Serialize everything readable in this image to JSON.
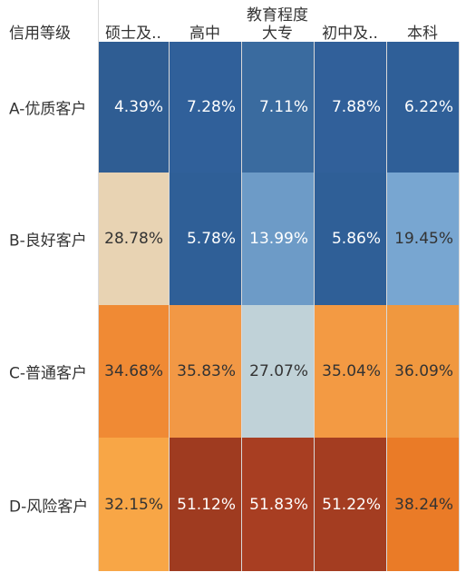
{
  "chart_data": {
    "type": "heatmap",
    "column_group_title": "教育程度",
    "row_header_title": "信用等级",
    "columns": [
      "硕士及..",
      "高中",
      "大专",
      "初中及..",
      "本科"
    ],
    "rows": [
      "A-优质客户",
      "B-良好客户",
      "C-普通客户",
      "D-风险客户"
    ],
    "values": [
      [
        "4.39%",
        "7.28%",
        "7.11%",
        "7.88%",
        "6.22%"
      ],
      [
        "28.78%",
        "5.78%",
        "13.99%",
        "5.86%",
        "19.45%"
      ],
      [
        "34.68%",
        "35.83%",
        "27.07%",
        "35.04%",
        "36.09%"
      ],
      [
        "32.15%",
        "51.12%",
        "51.83%",
        "51.22%",
        "38.24%"
      ]
    ],
    "cell_colors": [
      [
        "#2f5d93",
        "#30609a",
        "#3a6b9f",
        "#31609a",
        "#2f5f98"
      ],
      [
        "#e8d3b3",
        "#2f5f97",
        "#6d9bc7",
        "#2f5f97",
        "#78a6d1"
      ],
      [
        "#f08a34",
        "#f29845",
        "#c0d2d8",
        "#f39a43",
        "#f0983f"
      ],
      [
        "#f8a646",
        "#9f3b20",
        "#a83e22",
        "#a43d21",
        "#ea7b27"
      ]
    ],
    "text_colors": [
      [
        "#ffffff",
        "#ffffff",
        "#ffffff",
        "#ffffff",
        "#ffffff"
      ],
      [
        "#333333",
        "#ffffff",
        "#ffffff",
        "#ffffff",
        "#333333"
      ],
      [
        "#333333",
        "#333333",
        "#333333",
        "#333333",
        "#333333"
      ],
      [
        "#333333",
        "#ffffff",
        "#ffffff",
        "#ffffff",
        "#333333"
      ]
    ]
  }
}
